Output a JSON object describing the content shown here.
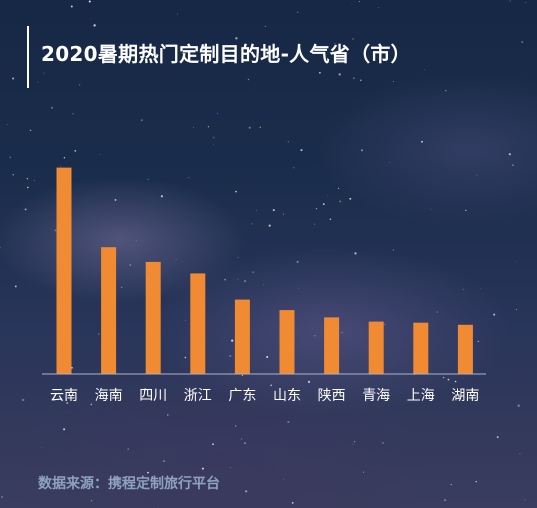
{
  "title": "2020暑期热门定制目的地-人气省（市）",
  "source": "数据来源：携程定制旅行平台",
  "colors": {
    "bar": "#f08a33",
    "axis": "#a9b4c8",
    "tick_text": "#ffffff"
  },
  "chart_data": {
    "type": "bar",
    "title": "2020暑期热门定制目的地-人气省（市）",
    "categories": [
      "云南",
      "海南",
      "四川",
      "浙江",
      "广东",
      "山东",
      "陕西",
      "青海",
      "上海",
      "湖南"
    ],
    "values": [
      197,
      121,
      107,
      96,
      71,
      61,
      54,
      50,
      49,
      47
    ],
    "value_axis_shown": false,
    "ylim": [
      0,
      210
    ],
    "grid": false,
    "legend": "none"
  }
}
